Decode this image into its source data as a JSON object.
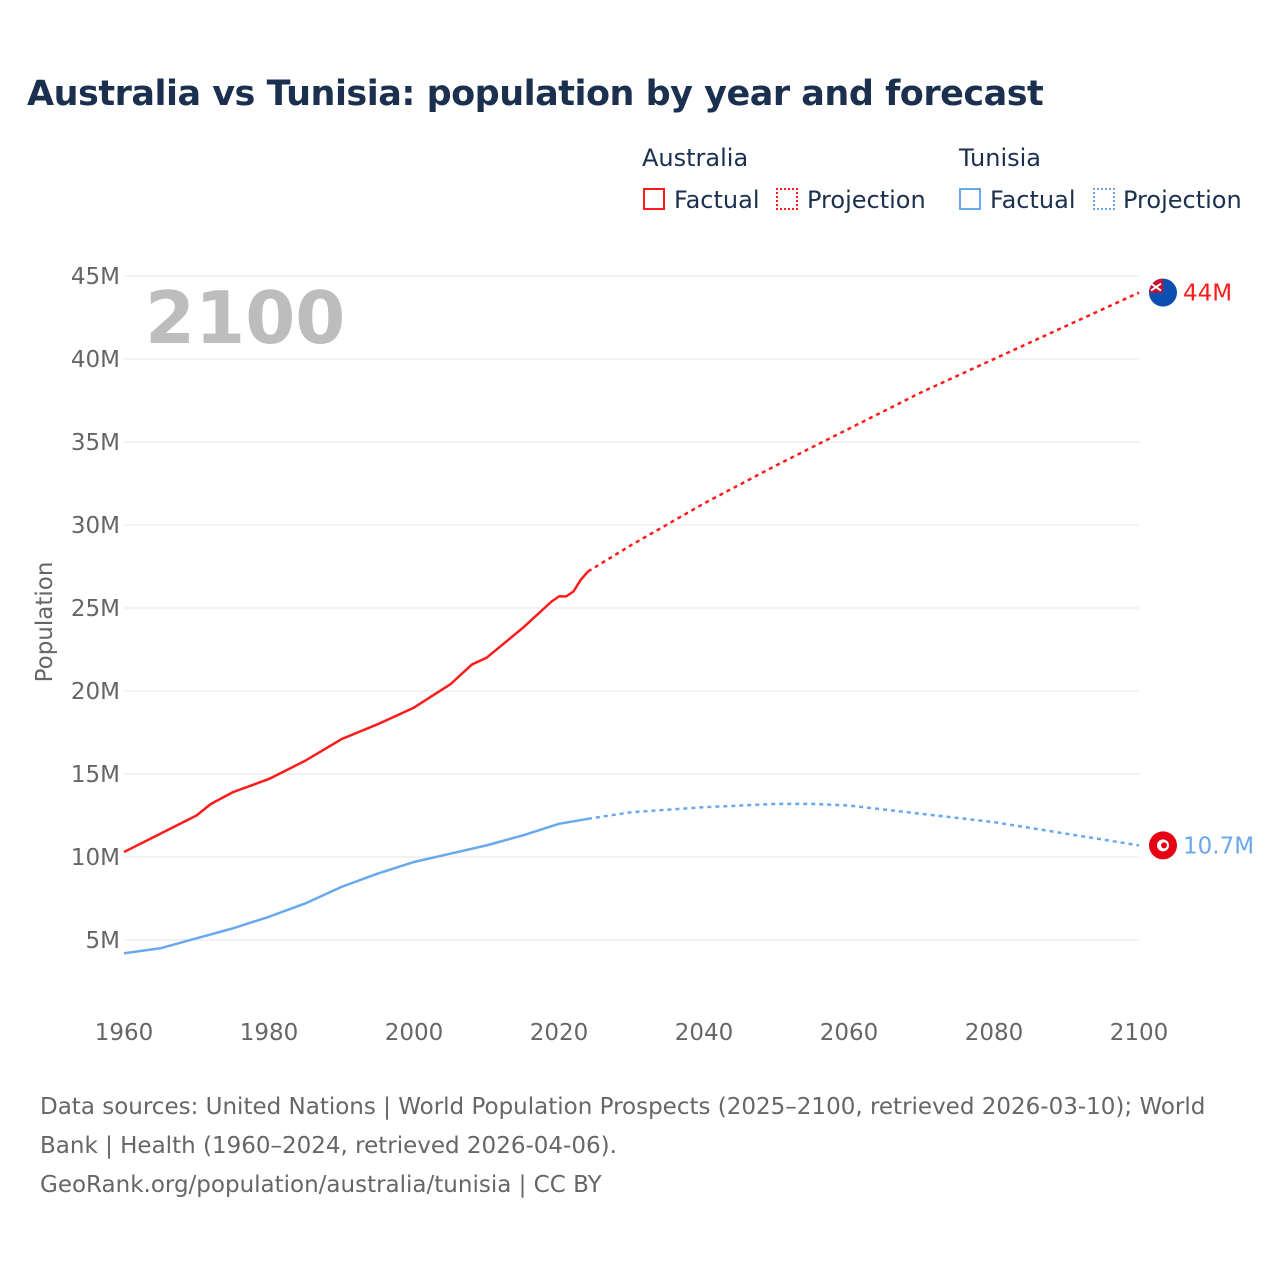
{
  "chart_data": {
    "type": "line",
    "title": "Australia vs Tunisia: population by year and forecast",
    "ylabel": "Population",
    "xlim": [
      1960,
      2100
    ],
    "ylim": [
      0,
      45
    ],
    "xticks": [
      "1960",
      "1980",
      "2000",
      "2020",
      "2040",
      "2060",
      "2080",
      "2100"
    ],
    "yticks": [
      "5M",
      "10M",
      "15M",
      "20M",
      "25M",
      "30M",
      "35M",
      "40M",
      "45M"
    ],
    "year_label": "2100",
    "legend": {
      "groups": [
        {
          "name": "Australia",
          "items": [
            "Factual",
            "Projection"
          ]
        },
        {
          "name": "Tunisia",
          "items": [
            "Factual",
            "Projection"
          ]
        }
      ]
    },
    "series": [
      {
        "name": "Australia",
        "color": "#ff1a1a",
        "end_label": "44M",
        "flag": "australia-flag",
        "factual": {
          "x": [
            1960,
            1965,
            1970,
            1972,
            1975,
            1980,
            1985,
            1990,
            1995,
            2000,
            2005,
            2008,
            2010,
            2015,
            2019,
            2020,
            2021,
            2022,
            2023,
            2024
          ],
          "y": [
            10.3,
            11.4,
            12.5,
            13.2,
            13.9,
            14.7,
            15.8,
            17.1,
            18.0,
            19.0,
            20.4,
            21.6,
            22.0,
            23.8,
            25.4,
            25.7,
            25.7,
            26.0,
            26.7,
            27.2
          ]
        },
        "projection": {
          "x": [
            2024,
            2030,
            2040,
            2050,
            2060,
            2070,
            2080,
            2090,
            2100
          ],
          "y": [
            27.2,
            28.8,
            31.3,
            33.6,
            35.8,
            38.0,
            40.0,
            42.0,
            44.0
          ]
        }
      },
      {
        "name": "Tunisia",
        "color": "#69a8ec",
        "end_label": "10.7M",
        "flag": "tunisia-flag",
        "factual": {
          "x": [
            1960,
            1965,
            1970,
            1975,
            1980,
            1985,
            1990,
            1995,
            2000,
            2005,
            2010,
            2015,
            2020,
            2024
          ],
          "y": [
            4.2,
            4.5,
            5.1,
            5.7,
            6.4,
            7.2,
            8.2,
            9.0,
            9.7,
            10.2,
            10.7,
            11.3,
            12.0,
            12.3
          ]
        },
        "projection": {
          "x": [
            2024,
            2030,
            2040,
            2050,
            2055,
            2060,
            2070,
            2080,
            2090,
            2100
          ],
          "y": [
            12.3,
            12.7,
            13.0,
            13.2,
            13.2,
            13.1,
            12.6,
            12.1,
            11.4,
            10.7
          ]
        }
      }
    ]
  },
  "footer": {
    "sources": "Data sources: United Nations | World Population Prospects (2025–2100, retrieved 2026-03-10); World Bank | Health (1960–2024, retrieved 2026-04-06).",
    "credit": "GeoRank.org/population/australia/tunisia | CC BY"
  }
}
